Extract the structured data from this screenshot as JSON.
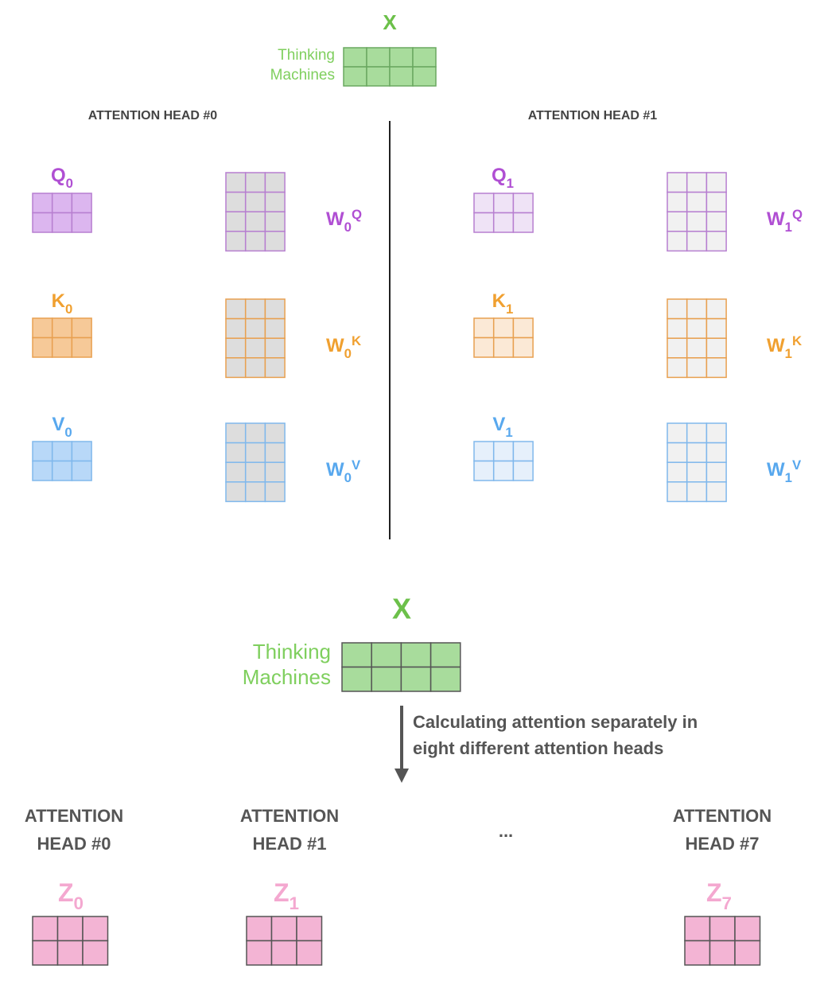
{
  "top": {
    "title": "X",
    "input_lines": [
      "Thinking",
      "Machines"
    ],
    "heads": [
      {
        "title": "ATTENTION HEAD #0",
        "inputs": [
          {
            "letter": "Q",
            "sub": "0"
          },
          {
            "letter": "K",
            "sub": "0"
          },
          {
            "letter": "V",
            "sub": "0"
          }
        ],
        "weights": [
          {
            "letter": "W",
            "sub": "0",
            "sup": "Q"
          },
          {
            "letter": "W",
            "sub": "0",
            "sup": "K"
          },
          {
            "letter": "W",
            "sub": "0",
            "sup": "V"
          }
        ]
      },
      {
        "title": "ATTENTION HEAD #1",
        "inputs": [
          {
            "letter": "Q",
            "sub": "1"
          },
          {
            "letter": "K",
            "sub": "1"
          },
          {
            "letter": "V",
            "sub": "1"
          }
        ],
        "weights": [
          {
            "letter": "W",
            "sub": "1",
            "sup": "Q"
          },
          {
            "letter": "W",
            "sub": "1",
            "sup": "K"
          },
          {
            "letter": "W",
            "sub": "1",
            "sup": "V"
          }
        ]
      }
    ]
  },
  "bottom": {
    "title": "X",
    "input_lines": [
      "Thinking",
      "Machines"
    ],
    "caption_lines": [
      "Calculating attention separately in",
      "eight different attention heads"
    ],
    "heads": [
      {
        "title_lines": [
          "ATTENTION",
          "HEAD #0"
        ],
        "output": {
          "letter": "Z",
          "sub": "0"
        }
      },
      {
        "title_lines": [
          "ATTENTION",
          "HEAD #1"
        ],
        "output": {
          "letter": "Z",
          "sub": "1"
        }
      },
      {
        "title_lines": [
          "ATTENTION",
          "HEAD #7"
        ],
        "output": {
          "letter": "Z",
          "sub": "7"
        }
      }
    ],
    "ellipsis": "..."
  }
}
